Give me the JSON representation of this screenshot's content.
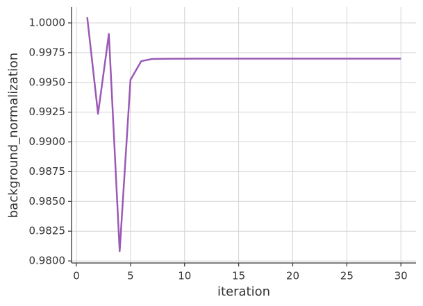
{
  "chart_data": {
    "type": "line",
    "x_label": "iteration",
    "y_label": "background_normalization",
    "x": [
      1,
      2,
      3,
      4,
      5,
      6,
      7,
      8,
      9,
      10,
      11,
      12,
      13,
      14,
      15,
      16,
      17,
      18,
      19,
      20,
      21,
      22,
      23,
      24,
      25,
      26,
      27,
      28,
      29,
      30
    ],
    "series": [
      {
        "name": "background_normalization",
        "color": "#9b59b6",
        "values": [
          1.00047,
          0.99236,
          0.99907,
          0.98082,
          0.99522,
          0.99679,
          0.99697,
          0.99698,
          0.99699,
          0.99699,
          0.997,
          0.997,
          0.997,
          0.997,
          0.997,
          0.997,
          0.997,
          0.997,
          0.997,
          0.997,
          0.997,
          0.997,
          0.997,
          0.997,
          0.997,
          0.997,
          0.997,
          0.997,
          0.997,
          0.997
        ]
      }
    ],
    "xlim": [
      -0.45,
      31.4
    ],
    "ylim": [
      0.97983,
      1.00134
    ],
    "xticks": [
      0,
      5,
      10,
      15,
      20,
      25,
      30
    ],
    "yticks": [
      {
        "value": 0.98,
        "label": "0.9800"
      },
      {
        "value": 0.9825,
        "label": "0.9825"
      },
      {
        "value": 0.985,
        "label": "0.9850"
      },
      {
        "value": 0.9875,
        "label": "0.9875"
      },
      {
        "value": 0.99,
        "label": "0.9900"
      },
      {
        "value": 0.9925,
        "label": "0.9925"
      },
      {
        "value": 0.995,
        "label": "0.9950"
      },
      {
        "value": 0.9975,
        "label": "0.9975"
      },
      {
        "value": 1.0,
        "label": "1.0000"
      }
    ],
    "grid": true
  }
}
